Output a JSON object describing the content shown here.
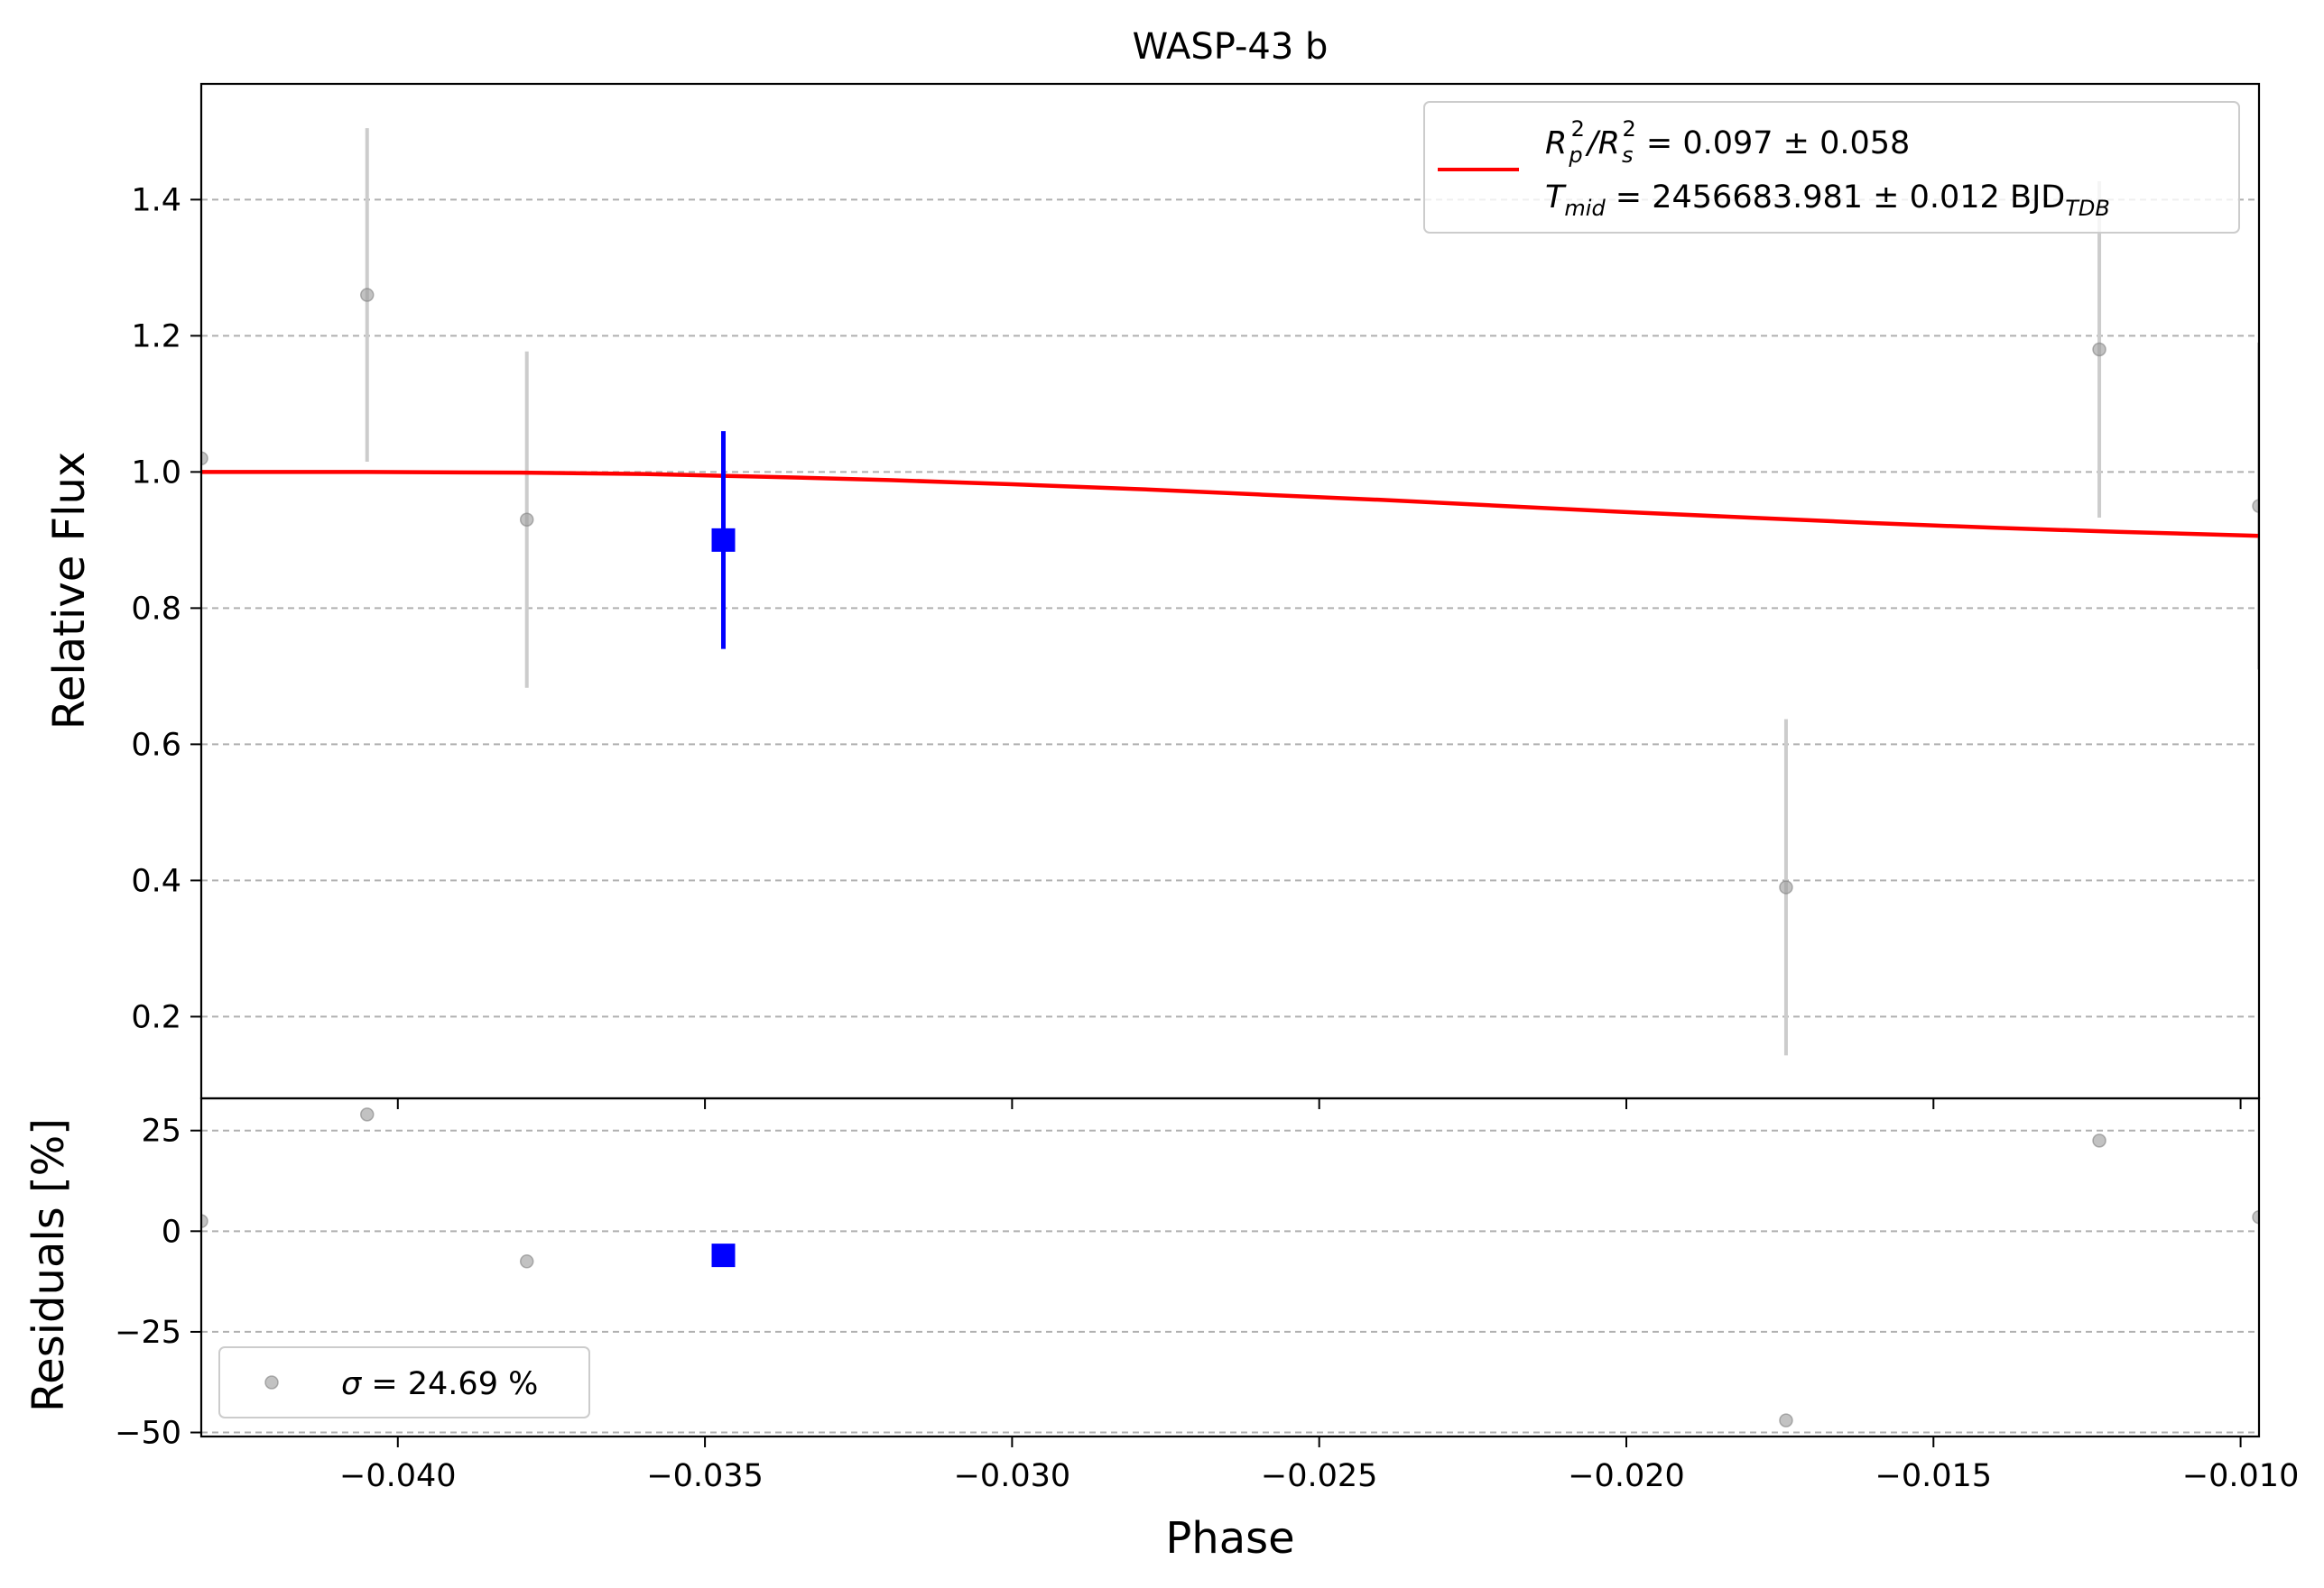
{
  "colors": {
    "model": "#ff0000",
    "binned": "#0000ff",
    "raw_points": "#999999",
    "raw_errorbars": "#cccccc",
    "grid": "#b0b0b0"
  },
  "chart_data": [
    {
      "panel": "main",
      "type": "scatter",
      "title": "WASP-43 b",
      "xlabel": "",
      "ylabel": "Relative Flux",
      "xlim": [
        -0.0432,
        -0.0097
      ],
      "ylim": [
        0.08,
        1.57
      ],
      "x_ticks": [
        -0.04,
        -0.035,
        -0.03,
        -0.025,
        -0.02,
        -0.015,
        -0.01
      ],
      "y_ticks": [
        0.2,
        0.4,
        0.6,
        0.8,
        1.0,
        1.2,
        1.4
      ],
      "y_tick_labels": [
        "0.2",
        "0.4",
        "0.6",
        "0.8",
        "1.0",
        "1.2",
        "1.4"
      ],
      "grid": "horizontal dashed",
      "legend_position": "top-right",
      "legend": {
        "line1_parts": [
          "R",
          "p",
          "2",
          "/R",
          "s",
          "2",
          " = 0.097 ± 0.058"
        ],
        "line2_parts": [
          "T",
          "mid",
          " = 2456683.981 ± 0.012 BJD",
          "TDB"
        ]
      },
      "raw_points": [
        {
          "x": -0.0432,
          "y": 1.02,
          "err": 0.0
        },
        {
          "x": -0.0405,
          "y": 1.26,
          "err": 0.245
        },
        {
          "x": -0.0379,
          "y": 0.93,
          "err": 0.247
        },
        {
          "x": -0.0174,
          "y": 0.39,
          "err": 0.247
        },
        {
          "x": -0.0123,
          "y": 1.18,
          "err": 0.247
        },
        {
          "x": -0.0097,
          "y": 0.95,
          "err": 0.24
        }
      ],
      "binned_points": [
        {
          "x": -0.0347,
          "y": 0.9,
          "err": 0.16
        }
      ],
      "model_line": {
        "x": [
          -0.0432,
          -0.0405,
          -0.038,
          -0.036,
          -0.034,
          -0.032,
          -0.03,
          -0.028,
          -0.026,
          -0.024,
          -0.022,
          -0.02,
          -0.018,
          -0.016,
          -0.014,
          -0.012,
          -0.01,
          -0.0097
        ],
        "y": [
          1.0,
          1.0,
          0.999,
          0.997,
          0.993,
          0.988,
          0.982,
          0.975,
          0.967,
          0.959,
          0.95,
          0.941,
          0.933,
          0.925,
          0.918,
          0.912,
          0.907,
          0.906
        ]
      }
    },
    {
      "panel": "residuals",
      "type": "scatter",
      "xlabel": "Phase",
      "ylabel": "Residuals [%]",
      "xlim": [
        -0.0432,
        -0.0097
      ],
      "ylim": [
        -51,
        33
      ],
      "x_ticks": [
        -0.04,
        -0.035,
        -0.03,
        -0.025,
        -0.02,
        -0.015,
        -0.01
      ],
      "x_tick_labels": [
        "−0.040",
        "−0.035",
        "−0.030",
        "−0.025",
        "−0.020",
        "−0.015",
        "−0.010"
      ],
      "y_ticks": [
        -50,
        -25,
        0,
        25
      ],
      "y_tick_labels": [
        "−50",
        "−25",
        "0",
        "25"
      ],
      "grid": "horizontal dashed",
      "legend_position": "bottom-left",
      "legend": {
        "sigma_symbol": "σ",
        "sigma_text": " = 24.69 %"
      },
      "raw_points": [
        {
          "x": -0.0432,
          "y": 2.5
        },
        {
          "x": -0.0405,
          "y": 29
        },
        {
          "x": -0.0379,
          "y": -7.5
        },
        {
          "x": -0.0174,
          "y": -47
        },
        {
          "x": -0.0123,
          "y": 22.5
        },
        {
          "x": -0.0097,
          "y": 3.5
        }
      ],
      "binned_points": [
        {
          "x": -0.0347,
          "y": -6
        }
      ]
    }
  ]
}
